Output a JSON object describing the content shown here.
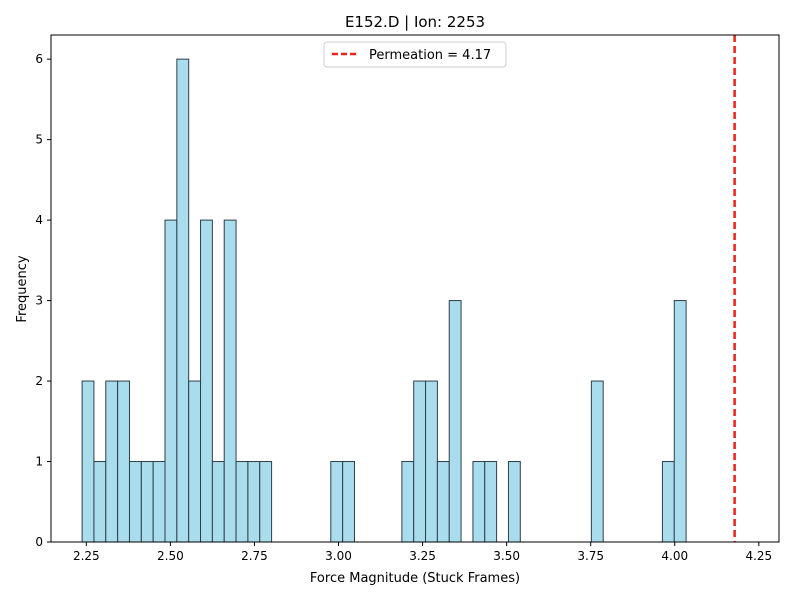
{
  "chart_data": {
    "type": "bar",
    "title": "E152.D | Ion: 2253",
    "xlabel": "Force Magnitude (Stuck Frames)",
    "ylabel": "Frequency",
    "xlim": [
      2.145,
      4.31
    ],
    "ylim": [
      0,
      6.3
    ],
    "xticks": [
      2.25,
      2.5,
      2.75,
      3.0,
      3.25,
      3.5,
      3.75,
      4.0,
      4.25
    ],
    "xtick_labels": [
      "2.25",
      "2.50",
      "2.75",
      "3.00",
      "3.25",
      "3.50",
      "3.75",
      "4.00",
      "4.25"
    ],
    "yticks": [
      0,
      1,
      2,
      3,
      4,
      5,
      6
    ],
    "ytick_labels": [
      "0",
      "1",
      "2",
      "3",
      "4",
      "5",
      "6"
    ],
    "grid": false,
    "legend_position": "top-center",
    "bins": {
      "start": 2.2375,
      "width": 0.03522,
      "counts": [
        2,
        1,
        2,
        2,
        1,
        1,
        1,
        4,
        6,
        2,
        4,
        1,
        4,
        1,
        1,
        1,
        0,
        0,
        0,
        0,
        0,
        1,
        1,
        0,
        0,
        0,
        0,
        1,
        2,
        2,
        1,
        3,
        0,
        1,
        1,
        0,
        1,
        0,
        0,
        0,
        0,
        0,
        0,
        2,
        0,
        0,
        0,
        0,
        0,
        1,
        3
      ]
    },
    "bar_fill": "#a9dcec",
    "bar_edge": "#2f3f47",
    "reference_line": {
      "label": "Permeation = 4.17",
      "x": 4.178,
      "color": "#e8231c",
      "style": "dashed"
    }
  }
}
